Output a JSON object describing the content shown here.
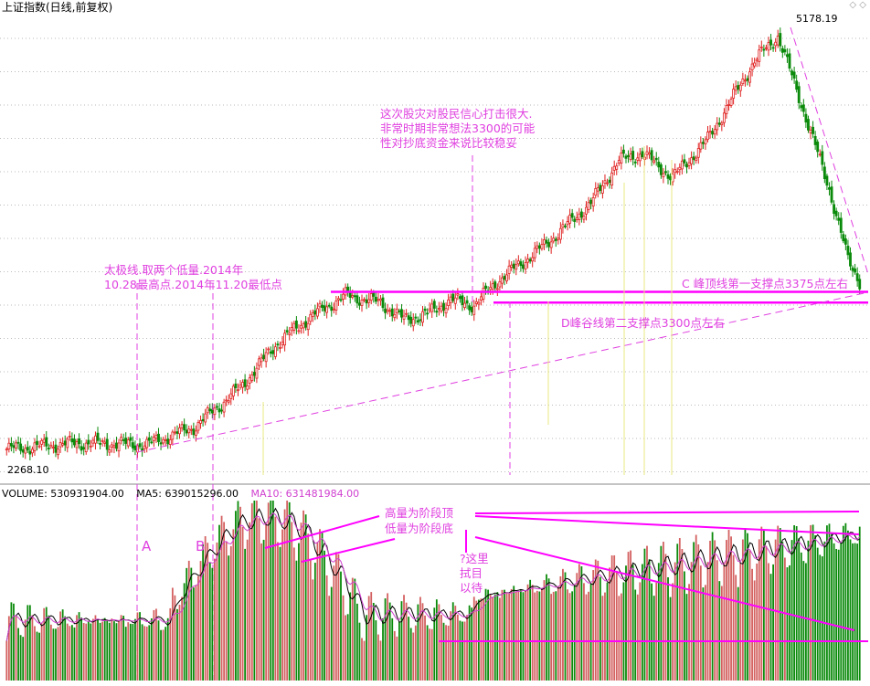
{
  "header": {
    "title": "上证指数(日线,前复权)",
    "corner_icons": [
      "diamond-icon",
      "diamond-icon"
    ]
  },
  "price_labels": {
    "high": "5178.19",
    "low": "2268.10"
  },
  "volume_header": {
    "volume": "VOLUME: 530931904.00",
    "ma5": "MA5: 639015296.00",
    "ma10": "MA10: 631481984.00"
  },
  "annotations": {
    "taiji": [
      "太极线.取两个低量.2014年",
      "10.28最高点.2014年11.20最低点"
    ],
    "crash": [
      "这次股灾对股民信心打击很大.",
      "非常时期非常想法3300的可能",
      "性对抄底资金来说比较稳妥"
    ],
    "c_line": "C 峰顶线第一支撑点3375点左右",
    "d_line": "D峰谷线第二支撑点3300点左右",
    "vol_top": "高量为阶段顶",
    "vol_bottom": "低量为阶段底",
    "wait": [
      "?这里",
      "拭目",
      "以待"
    ],
    "marker_a": "A",
    "marker_b": "B"
  },
  "colors": {
    "up": "#e02020",
    "down": "#0a8a0a",
    "annotation": "#e040e0",
    "ma5": "#000000",
    "ma10": "#d040d0",
    "support": "#ff00ff",
    "arrow_yellow": "#e8e880"
  },
  "chart_data": {
    "type": "candlestick_with_volume",
    "title": "上证指数(日线,前复权)",
    "price_range": [
      2268.1,
      5178.19
    ],
    "annotated_levels": [
      {
        "label": "C 峰顶线第一支撑点3375点左右",
        "value": 3375
      },
      {
        "label": "D峰谷线第二支撑点3300点左右",
        "value": 3300
      }
    ],
    "price_path_keypoints": [
      {
        "bar": 0,
        "close": 2268
      },
      {
        "bar": 30,
        "close": 2310
      },
      {
        "bar": 60,
        "close": 2300
      },
      {
        "bar": 80,
        "close": 2420
      },
      {
        "bar": 100,
        "close": 2700
      },
      {
        "bar": 115,
        "close": 3000
      },
      {
        "bar": 130,
        "close": 3200
      },
      {
        "bar": 145,
        "close": 3350
      },
      {
        "bar": 160,
        "close": 3300
      },
      {
        "bar": 170,
        "close": 3180
      },
      {
        "bar": 180,
        "close": 3220
      },
      {
        "bar": 190,
        "close": 3320
      },
      {
        "bar": 200,
        "close": 3280
      },
      {
        "bar": 210,
        "close": 3450
      },
      {
        "bar": 230,
        "close": 3700
      },
      {
        "bar": 250,
        "close": 4000
      },
      {
        "bar": 262,
        "close": 4300
      },
      {
        "bar": 272,
        "close": 4350
      },
      {
        "bar": 285,
        "close": 4180
      },
      {
        "bar": 300,
        "close": 4450
      },
      {
        "bar": 320,
        "close": 5000
      },
      {
        "bar": 330,
        "close": 5178
      },
      {
        "bar": 340,
        "close": 4700
      },
      {
        "bar": 352,
        "close": 4100
      },
      {
        "bar": 360,
        "close": 3600
      },
      {
        "bar": 365,
        "close": 3450
      }
    ]
  }
}
